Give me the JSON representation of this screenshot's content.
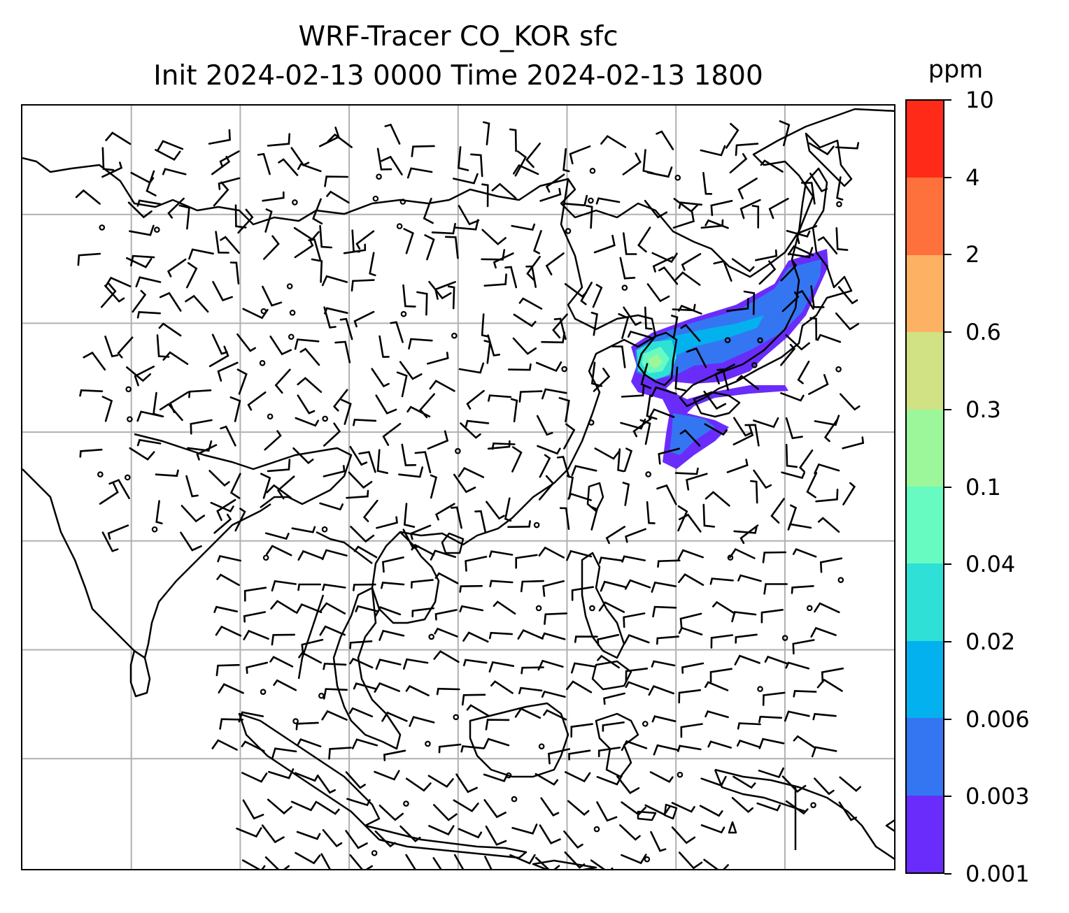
{
  "title": {
    "line1": "WRF-Tracer CO_KOR sfc",
    "line2": "Init 2024-02-13 0000 Time 2024-02-13 1800"
  },
  "colorbar": {
    "unit": "ppm",
    "levels": [
      "0.001",
      "0.003",
      "0.006",
      "0.02",
      "0.04",
      "0.1",
      "0.3",
      "0.6",
      "2",
      "4",
      "10"
    ],
    "colors": [
      "#6a2cfb",
      "#3476f2",
      "#03b1ee",
      "#2ee0d6",
      "#67fbc1",
      "#9bf79a",
      "#d0e283",
      "#fdb162",
      "#fe713c",
      "#ff2a18"
    ]
  },
  "map": {
    "style": {
      "coastline_color": "#000000",
      "grid_color": "#b0b0b0",
      "barb_color": "#000000"
    }
  }
}
